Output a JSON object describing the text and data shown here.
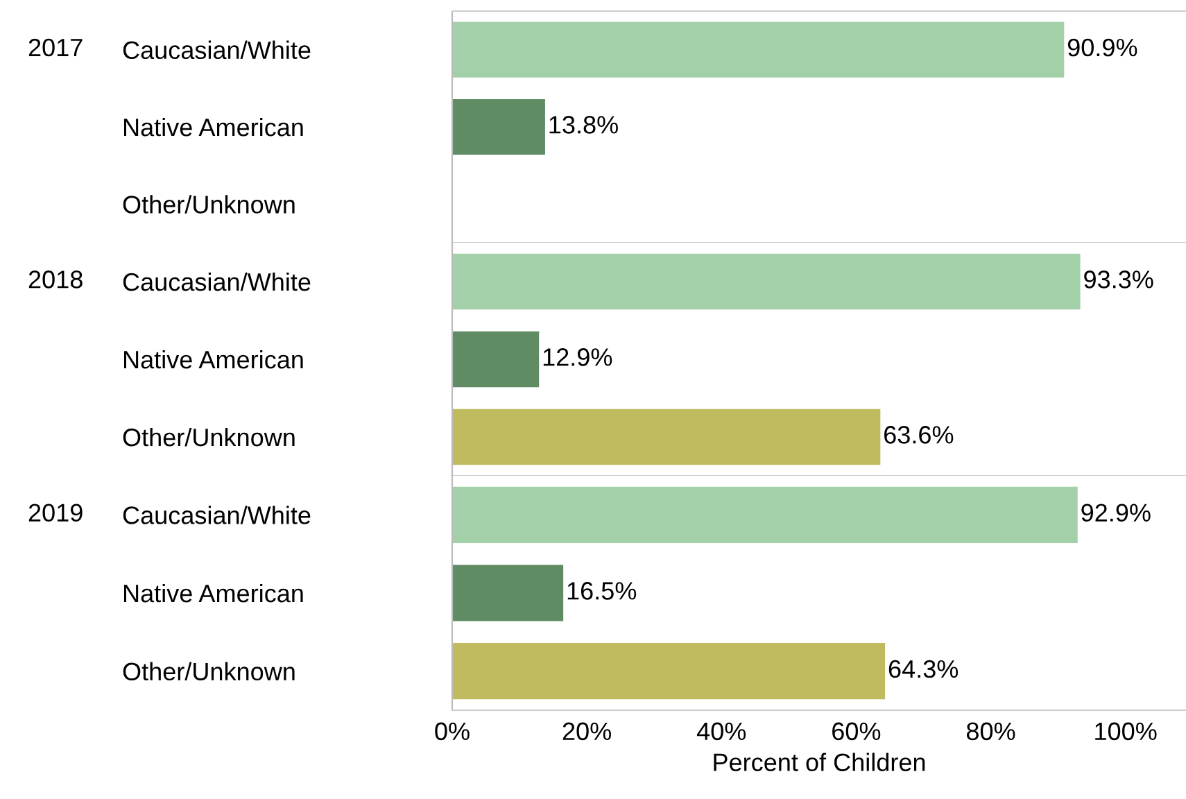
{
  "chart_data": [
    {
      "type": "bar",
      "orientation": "horizontal",
      "title": "2017",
      "categories": [
        "Caucasian/White",
        "Native American",
        "Other/Unknown"
      ],
      "values": [
        90.9,
        13.8,
        null
      ],
      "colors": [
        "#a3cfa9",
        "#5f8c63",
        "#c0bb5f"
      ],
      "value_labels": [
        "90.9%",
        "13.8%",
        null
      ],
      "xlim": [
        0,
        109
      ],
      "tick_labels": "y"
    },
    {
      "type": "bar",
      "orientation": "horizontal",
      "title": "2018",
      "categories": [
        "Caucasian/White",
        "Native American",
        "Other/Unknown"
      ],
      "values": [
        93.3,
        12.9,
        63.6
      ],
      "colors": [
        "#a3cfa9",
        "#5f8c63",
        "#c0bb5f"
      ],
      "value_labels": [
        "93.3%",
        "12.9%",
        "63.6%"
      ],
      "xlim": [
        0,
        109
      ],
      "tick_labels": "y"
    },
    {
      "type": "bar",
      "orientation": "horizontal",
      "title": "2019",
      "categories": [
        "Caucasian/White",
        "Native American",
        "Other/Unknown"
      ],
      "values": [
        92.9,
        16.5,
        64.3
      ],
      "colors": [
        "#a3cfa9",
        "#5f8c63",
        "#c0bb5f"
      ],
      "value_labels": [
        "92.9%",
        "16.5%",
        "64.3%"
      ],
      "xlim": [
        0,
        109
      ],
      "xticks": [
        {
          "value": 0,
          "label": "0%"
        },
        {
          "value": 20,
          "label": "20%"
        },
        {
          "value": 40,
          "label": "40%"
        },
        {
          "value": 60,
          "label": "60%"
        },
        {
          "value": 80,
          "label": "80%"
        },
        {
          "value": 100,
          "label": "100%"
        }
      ],
      "xlabel": "Percent of Children"
    }
  ]
}
